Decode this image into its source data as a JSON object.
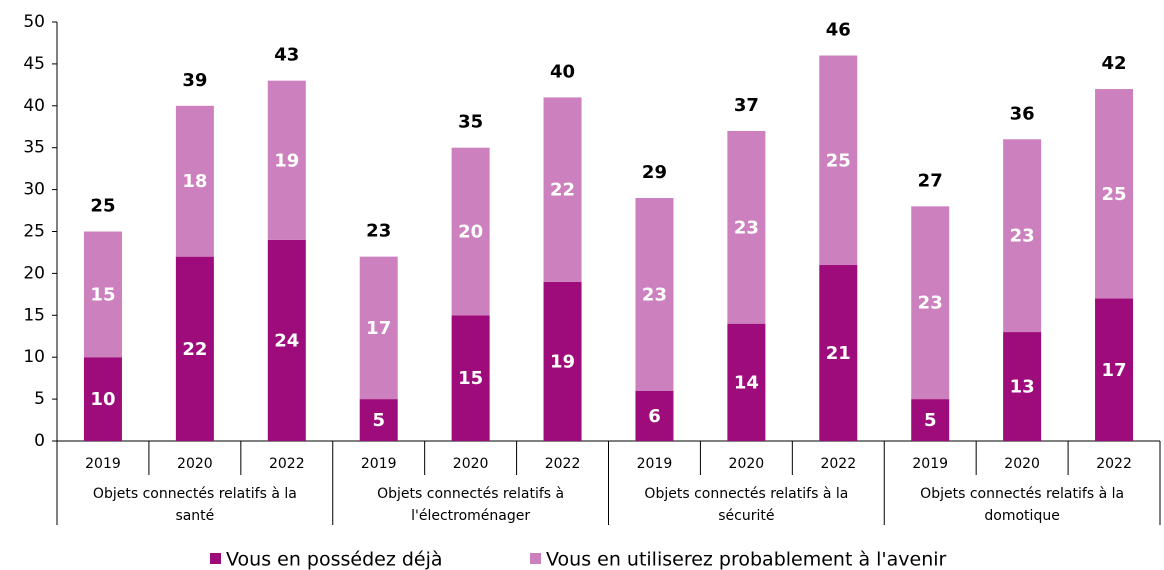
{
  "chart_data": {
    "type": "stacked_bar",
    "categories": [
      "2019",
      "2020",
      "2022",
      "2019",
      "2020",
      "2022",
      "2019",
      "2020",
      "2022",
      "2019",
      "2020",
      "2022"
    ],
    "groups": [
      {
        "lines": [
          "Objets connectés relatifs à la",
          "santé"
        ]
      },
      {
        "lines": [
          "Objets connectés relatifs à",
          "l'électroménager"
        ]
      },
      {
        "lines": [
          "Objets connectés relatifs à la",
          "sécurité"
        ]
      },
      {
        "lines": [
          "Objets connectés relatifs à la",
          "domotique"
        ]
      }
    ],
    "series": [
      {
        "name": "Vous en possédez déjà",
        "color": "#9e0b7b",
        "values": [
          10,
          22,
          24,
          5,
          15,
          19,
          6,
          14,
          21,
          5,
          13,
          17
        ]
      },
      {
        "name": "Vous en utiliserez probablement à l'avenir",
        "color": "#cc80be",
        "values": [
          15,
          18,
          19,
          17,
          20,
          22,
          23,
          23,
          25,
          23,
          23,
          25
        ]
      }
    ],
    "totals": [
      25,
      39,
      43,
      23,
      35,
      40,
      29,
      37,
      46,
      27,
      36,
      42
    ],
    "ylim": [
      0,
      50
    ],
    "yticks": [
      0,
      5,
      10,
      15,
      20,
      25,
      30,
      35,
      40,
      45,
      50
    ]
  }
}
